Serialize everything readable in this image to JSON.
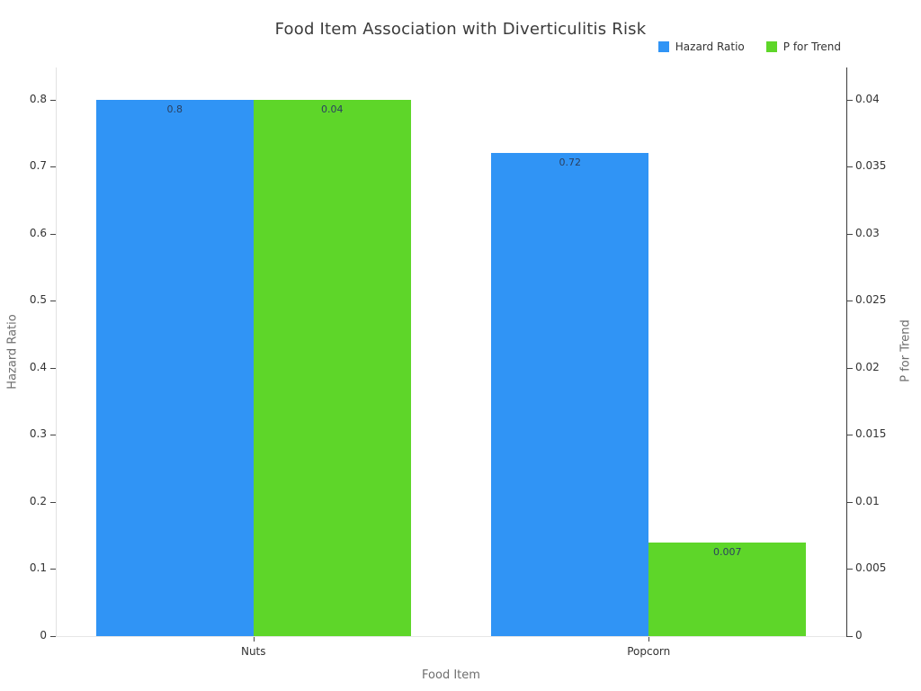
{
  "title": "Food Item Association with Diverticulitis Risk",
  "chart_data": {
    "type": "bar",
    "title": "Food Item Association with Diverticulitis Risk",
    "categories": [
      "Nuts",
      "Popcorn"
    ],
    "series": [
      {
        "name": "Hazard Ratio",
        "axis": "left",
        "color": "#3094F5",
        "values": [
          0.8,
          0.72
        ],
        "labels": [
          "0.8",
          "0.72"
        ]
      },
      {
        "name": "P for Trend",
        "axis": "right",
        "color": "#5ED629",
        "values": [
          0.04,
          0.007
        ],
        "labels": [
          "0.04",
          "0.007"
        ]
      }
    ],
    "xlabel": "Food Item",
    "yaxis_left": {
      "title": "Hazard Ratio",
      "range": [
        0,
        0.848
      ],
      "tick_values": [
        0,
        0.1,
        0.2,
        0.3,
        0.4,
        0.5,
        0.6,
        0.7,
        0.8
      ],
      "tick_labels": [
        "0",
        "0.1",
        "0.2",
        "0.3",
        "0.4",
        "0.5",
        "0.6",
        "0.7",
        "0.8"
      ]
    },
    "yaxis_right": {
      "title": "P for Trend",
      "range": [
        0,
        0.0424
      ],
      "tick_values": [
        0,
        0.005,
        0.01,
        0.015,
        0.02,
        0.025,
        0.03,
        0.035,
        0.04
      ],
      "tick_labels": [
        "0",
        "0.005",
        "0.01",
        "0.015",
        "0.02",
        "0.025",
        "0.03",
        "0.035",
        "0.04"
      ]
    },
    "grid": false,
    "legend_position": "top-right",
    "background": "#ffffff",
    "bar_label_position": "inside-top"
  }
}
